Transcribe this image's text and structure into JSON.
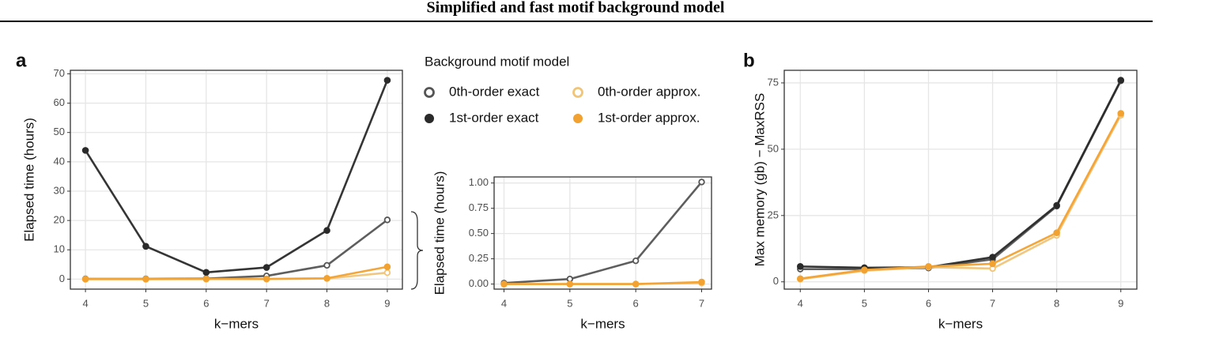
{
  "title": "Simplified and fast motif background model",
  "legend_title": "Background motif model",
  "chart_data": [
    {
      "type": "line",
      "panel_label": "a",
      "x_label": "k−mers",
      "y_label": "Elapsed time (hours)",
      "x": [
        4,
        5,
        6,
        7,
        8,
        9
      ],
      "xlim": [
        3.75,
        9.25
      ],
      "xticks": [
        4,
        5,
        6,
        7,
        8,
        9
      ],
      "ylim": [
        -3.4,
        71.2
      ],
      "yticks": [
        0,
        10,
        20,
        30,
        40,
        50,
        60,
        70
      ],
      "grid": true,
      "series": [
        {
          "name": "0th-order exact",
          "color": "#555555",
          "marker": "open",
          "values": [
            0.1,
            0.1,
            0.2,
            1.1,
            4.7,
            20.2
          ]
        },
        {
          "name": "1st-order exact",
          "color": "#2a2a2a",
          "marker": "filled",
          "values": [
            43.9,
            11.2,
            2.3,
            4.0,
            16.6,
            67.8
          ]
        },
        {
          "name": "0th-order approx.",
          "color": "#f0c479",
          "marker": "open",
          "values": [
            0.0,
            0.0,
            0.0,
            0.0,
            0.2,
            2.2
          ]
        },
        {
          "name": "1st-order approx.",
          "color": "#f2a230",
          "marker": "filled",
          "values": [
            0.0,
            0.0,
            0.1,
            0.1,
            0.3,
            4.2
          ]
        }
      ]
    },
    {
      "type": "line",
      "x_label": "k−mers",
      "y_label": "Elapsed time (hours)",
      "x": [
        4,
        5,
        6,
        7
      ],
      "xlim": [
        3.85,
        7.15
      ],
      "xticks": [
        4,
        5,
        6,
        7
      ],
      "ylim": [
        -0.05,
        1.06
      ],
      "yticks": [
        {
          "value": 0,
          "label": "0.00"
        },
        0.25,
        {
          "value": 0.5,
          "label": "0.50"
        },
        0.75,
        {
          "value": 1,
          "label": "1.00"
        }
      ],
      "grid": true,
      "series": [
        {
          "color": "#555555",
          "marker": "open",
          "values": [
            0.01,
            0.05,
            0.23,
            1.01
          ]
        },
        {
          "color": "#f0c479",
          "marker": "open",
          "values": [
            0.0,
            0.0,
            0.0,
            0.01
          ]
        },
        {
          "color": "#f2a230",
          "marker": "filled",
          "values": [
            0.0,
            0.0,
            0.0,
            0.02
          ]
        }
      ]
    },
    {
      "type": "line",
      "panel_label": "b",
      "x_label": "k−mers",
      "y_label": "Max memory (gb) − MaxRSS",
      "x": [
        4,
        5,
        6,
        7,
        8,
        9
      ],
      "xlim": [
        3.75,
        9.25
      ],
      "xticks": [
        4,
        5,
        6,
        7,
        8,
        9
      ],
      "ylim": [
        -2.75,
        79.75
      ],
      "yticks": [
        0,
        25,
        50,
        75
      ],
      "grid": true,
      "series": [
        {
          "color": "#555555",
          "marker": "open",
          "values": [
            4.8,
            4.8,
            5.2,
            8.5,
            28.5,
            75.8
          ]
        },
        {
          "color": "#2a2a2a",
          "marker": "filled",
          "values": [
            5.8,
            5.3,
            5.5,
            9.3,
            28.8,
            76.0
          ]
        },
        {
          "color": "#f0c479",
          "marker": "open",
          "values": [
            1.0,
            4.2,
            5.5,
            5.0,
            17.5,
            62.8
          ]
        },
        {
          "color": "#f2a230",
          "marker": "filled",
          "values": [
            1.2,
            4.5,
            5.8,
            6.8,
            18.5,
            63.5
          ]
        }
      ]
    }
  ]
}
